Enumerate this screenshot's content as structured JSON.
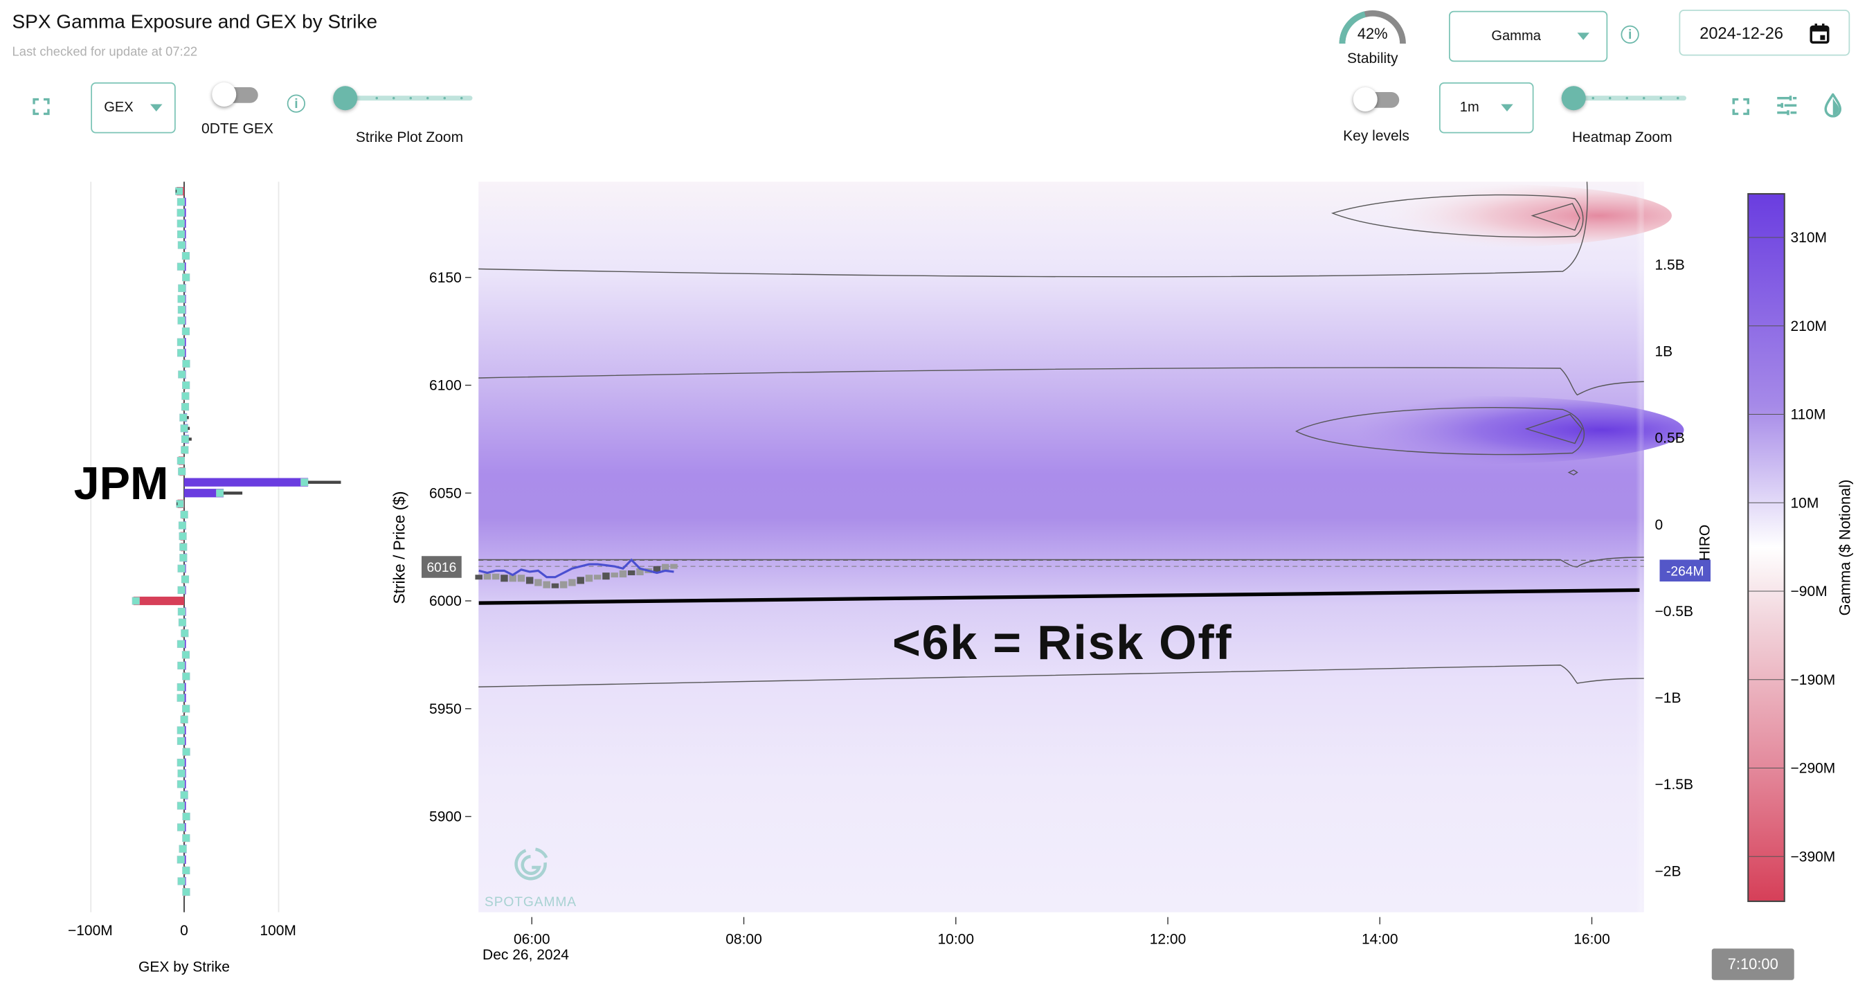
{
  "header": {
    "title": "SPX Gamma Exposure and GEX by Strike",
    "subtitle": "Last checked for update at 07:22"
  },
  "left_controls": {
    "metric_select": "GEX",
    "odte_toggle_label": "0DTE GEX",
    "odte_toggle_on": false,
    "strike_zoom_label": "Strike Plot Zoom",
    "strike_zoom_value": 0
  },
  "right_controls": {
    "stability_value": "42%",
    "stability_fraction": 0.42,
    "stability_label": "Stability",
    "greek_select": "Gamma",
    "date": "2024-12-26",
    "key_levels_label": "Key levels",
    "key_levels_on": false,
    "interval_select": "1m",
    "heatmap_zoom_label": "Heatmap Zoom",
    "heatmap_zoom_value": 0
  },
  "annotations": {
    "jpm": "JPM",
    "risk_off": "<6k = Risk Off",
    "logo_text": "SPOTGAMMA"
  },
  "tooltip": "7:10:00",
  "colors": {
    "accent": "#6bb8aa",
    "positive": "#6a3de0",
    "negative": "#d63f58",
    "marker": "#7de0c8"
  },
  "chart_data": [
    {
      "type": "bar",
      "orientation": "horizontal",
      "title": "GEX by Strike",
      "xlabel": "GEX by Strike",
      "xlim": [
        -100,
        200
      ],
      "xticks": [
        "−100M",
        "0",
        "100M"
      ],
      "xtick_values": [
        -100,
        0,
        100
      ],
      "units": "M",
      "strikes": [
        6190,
        6185,
        6180,
        6175,
        6170,
        6165,
        6160,
        6155,
        6150,
        6145,
        6140,
        6135,
        6130,
        6125,
        6120,
        6115,
        6110,
        6105,
        6100,
        6095,
        6090,
        6085,
        6080,
        6075,
        6070,
        6065,
        6060,
        6055,
        6050,
        6045,
        6040,
        6035,
        6030,
        6025,
        6020,
        6015,
        6010,
        6005,
        6000,
        5995,
        5990,
        5985,
        5980,
        5975,
        5970,
        5965,
        5960,
        5955,
        5950,
        5945,
        5940,
        5935,
        5930,
        5925,
        5920,
        5915,
        5910,
        5905,
        5900,
        5895,
        5890,
        5885,
        5880,
        5875,
        5870,
        5865
      ],
      "values": [
        -8,
        0.5,
        0.3,
        0.4,
        0.6,
        1.2,
        -0.8,
        0.5,
        -0.6,
        1.5,
        1,
        1.2,
        1,
        -0.8,
        0.5,
        0.6,
        -0.4,
        1.5,
        -0.6,
        -1.2,
        -1.5,
        3,
        4,
        5,
        -2,
        -6,
        -5,
        132,
        42,
        -7,
        -2.5,
        2,
        -4,
        -3.5,
        3,
        1,
        -1.5,
        1,
        -54,
        1.2,
        2,
        -2,
        0.5,
        -0.8,
        0.8,
        -0.5,
        0.4,
        0.3,
        -0.6,
        -2.5,
        0.4,
        0.5,
        -0.3,
        0.4,
        1,
        0.5,
        4,
        0.5,
        -0.3,
        0.6,
        -0.5,
        2.5,
        0.4,
        -0.5,
        1,
        -0.4
      ],
      "whiskers": [
        {
          "strike": 6190,
          "value": -9
        },
        {
          "strike": 6085,
          "value": 5
        },
        {
          "strike": 6080,
          "value": 6
        },
        {
          "strike": 6075,
          "value": 8
        },
        {
          "strike": 6055,
          "value": 167
        },
        {
          "strike": 6050,
          "value": 62
        },
        {
          "strike": 6045,
          "value": -8
        }
      ]
    },
    {
      "type": "heatmap",
      "title": "SPX Gamma Exposure",
      "ylabel": "Strike / Price ($)",
      "ylim": [
        5856,
        6194
      ],
      "yticks": [
        "6150",
        "6100",
        "6050",
        "6000",
        "5950",
        "5900"
      ],
      "ytick_values": [
        6150,
        6100,
        6050,
        6000,
        5950,
        5900
      ],
      "xlim_hours": [
        5.5,
        16.5
      ],
      "xticks": [
        "06:00",
        "08:00",
        "10:00",
        "12:00",
        "14:00",
        "16:00"
      ],
      "xtick_values": [
        6,
        8,
        10,
        12,
        14,
        16
      ],
      "x_date_label": "Dec 26, 2024",
      "current_price_label": "6016",
      "current_price": 6016,
      "key_line": {
        "from": [
          5.5,
          5999
        ],
        "to": [
          16.45,
          6005
        ]
      },
      "price_series": {
        "name": "SPX price",
        "hours": [
          5.5,
          5.58,
          5.66,
          5.74,
          5.82,
          5.9,
          5.98,
          6.06,
          6.14,
          6.22,
          6.3,
          6.38,
          6.46,
          6.54,
          6.62,
          6.7,
          6.78,
          6.86,
          6.94,
          7.02,
          7.1,
          7.18,
          7.26,
          7.34
        ],
        "values": [
          6011,
          6011.5,
          6011,
          6010,
          6011,
          6010,
          6009,
          6008,
          6007,
          6007,
          6008,
          6009,
          6010,
          6011,
          6011,
          6012,
          6012,
          6013,
          6013,
          6014,
          6014,
          6015,
          6016,
          6016
        ]
      },
      "iro_series": {
        "name": "HIRO",
        "hours": [
          5.5,
          5.58,
          5.66,
          5.74,
          5.82,
          5.9,
          5.98,
          6.06,
          6.14,
          6.22,
          6.3,
          6.38,
          6.46,
          6.54,
          6.62,
          6.7,
          6.78,
          6.86,
          6.94,
          7.02,
          7.1,
          7.18,
          7.26,
          7.34
        ],
        "values": [
          6014,
          6013,
          6014,
          6014,
          6012,
          6014.5,
          6013.5,
          6014,
          6011,
          6011,
          6013,
          6015,
          6016,
          6017,
          6017,
          6016.5,
          6016,
          6015,
          6019,
          6015,
          6014,
          6013,
          6014,
          6013.5
        ]
      },
      "right_axis": {
        "label": "HIRO",
        "ticks": [
          "1.5B",
          "1B",
          "0.5B",
          "0",
          "−0.5B",
          "−1B",
          "−1.5B",
          "−2B"
        ],
        "tick_values": [
          1.5,
          1,
          0.5,
          0,
          -0.5,
          -1,
          -1.5,
          -2
        ],
        "current_label": "-264M",
        "current_value": -0.264
      }
    },
    {
      "type": "colorbar",
      "label": "Gamma ($ Notional)",
      "ticks": [
        "310M",
        "210M",
        "110M",
        "10M",
        "−90M",
        "−190M",
        "−290M",
        "−390M"
      ],
      "tick_values": [
        310,
        210,
        110,
        10,
        -90,
        -190,
        -290,
        -390
      ],
      "range": [
        -440,
        360
      ]
    }
  ]
}
